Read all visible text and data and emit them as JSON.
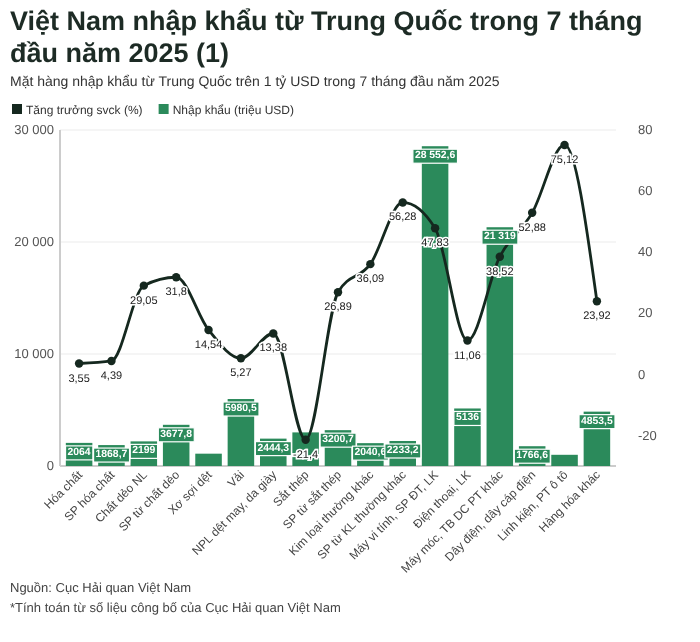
{
  "chart_data": {
    "type": "bar",
    "title": "Việt Nam nhập khẩu từ Trung Quốc trong 7 tháng đầu năm 2025 (1)",
    "subtitle": "Mặt hàng nhập khẩu từ Trung Quốc trên 1 tỷ USD trong 7 tháng đầu năm 2025",
    "categories": [
      "Hóa chất",
      "SP hóa chất",
      "Chất dẻo NL",
      "SP từ chất dẻo",
      "Xơ sợi dệt",
      "Vải",
      "NPL dệt may, da giày",
      "Sắt thép",
      "SP từ sắt thép",
      "Kim loại thường khác",
      "SP từ KL thường khác",
      "Máy vi tính, SP ĐT, LK",
      "Điện thoại, LK",
      "Máy móc, TB DC PT khác",
      "Dây điện, dây cáp điện",
      "Linh kiện, PT ô tô",
      "Hàng hóa khác"
    ],
    "series": [
      {
        "name": "Nhập khẩu (triệu USD)",
        "color": "#2b8a5b",
        "values": [
          2064,
          1868.7,
          2199,
          3677.8,
          1100,
          5980.5,
          2444.3,
          3000,
          3200.7,
          2040.6,
          2233.2,
          28552.6,
          5136,
          21319,
          1766.6,
          1000,
          4853.5
        ],
        "value_labels": [
          "2064",
          "1868,7",
          "2199",
          "3677,8",
          null,
          "5980,5",
          "2444,3",
          null,
          "3200,7",
          "2040,6",
          "2233,2",
          "28 552,6",
          "5136",
          "21 319",
          "1766,6",
          null,
          "4853,5"
        ]
      },
      {
        "name": "Tăng trưởng svck (%)",
        "type": "line",
        "axis": "y2",
        "color": "#15281f",
        "values": [
          3.55,
          4.39,
          29.05,
          31.8,
          14.54,
          5.27,
          13.38,
          -21.4,
          26.89,
          36.09,
          56.28,
          47.83,
          11.06,
          38.52,
          52.88,
          75.12,
          23.92
        ],
        "value_labels": [
          "3,55",
          "4,39",
          "29,05",
          "31,8",
          "14,54",
          "5,27",
          "13,38",
          "-21,4",
          "26,89",
          "36,09",
          "56,28",
          "47,83",
          "11,06",
          "38,52",
          "52,88",
          "75,12",
          "23,92"
        ]
      }
    ],
    "ylim": [
      0,
      30000
    ],
    "yticks": [
      {
        "value": 0,
        "label": "0"
      },
      {
        "value": 10000,
        "label": "10 000"
      },
      {
        "value": 20000,
        "label": "20 000"
      },
      {
        "value": 30000,
        "label": "30 000"
      }
    ],
    "y2lim": [
      -30,
      80
    ],
    "y2ticks": [
      -20,
      0,
      20,
      40,
      60,
      80
    ],
    "grid": "y",
    "legend": "top left",
    "marker": "circle",
    "line_style": "solid",
    "annotations": [
      "Nguồn: Cục Hải quan Việt Nam",
      "*Tính toán từ số liệu công bố của Cục Hải quan Việt Nam"
    ]
  }
}
